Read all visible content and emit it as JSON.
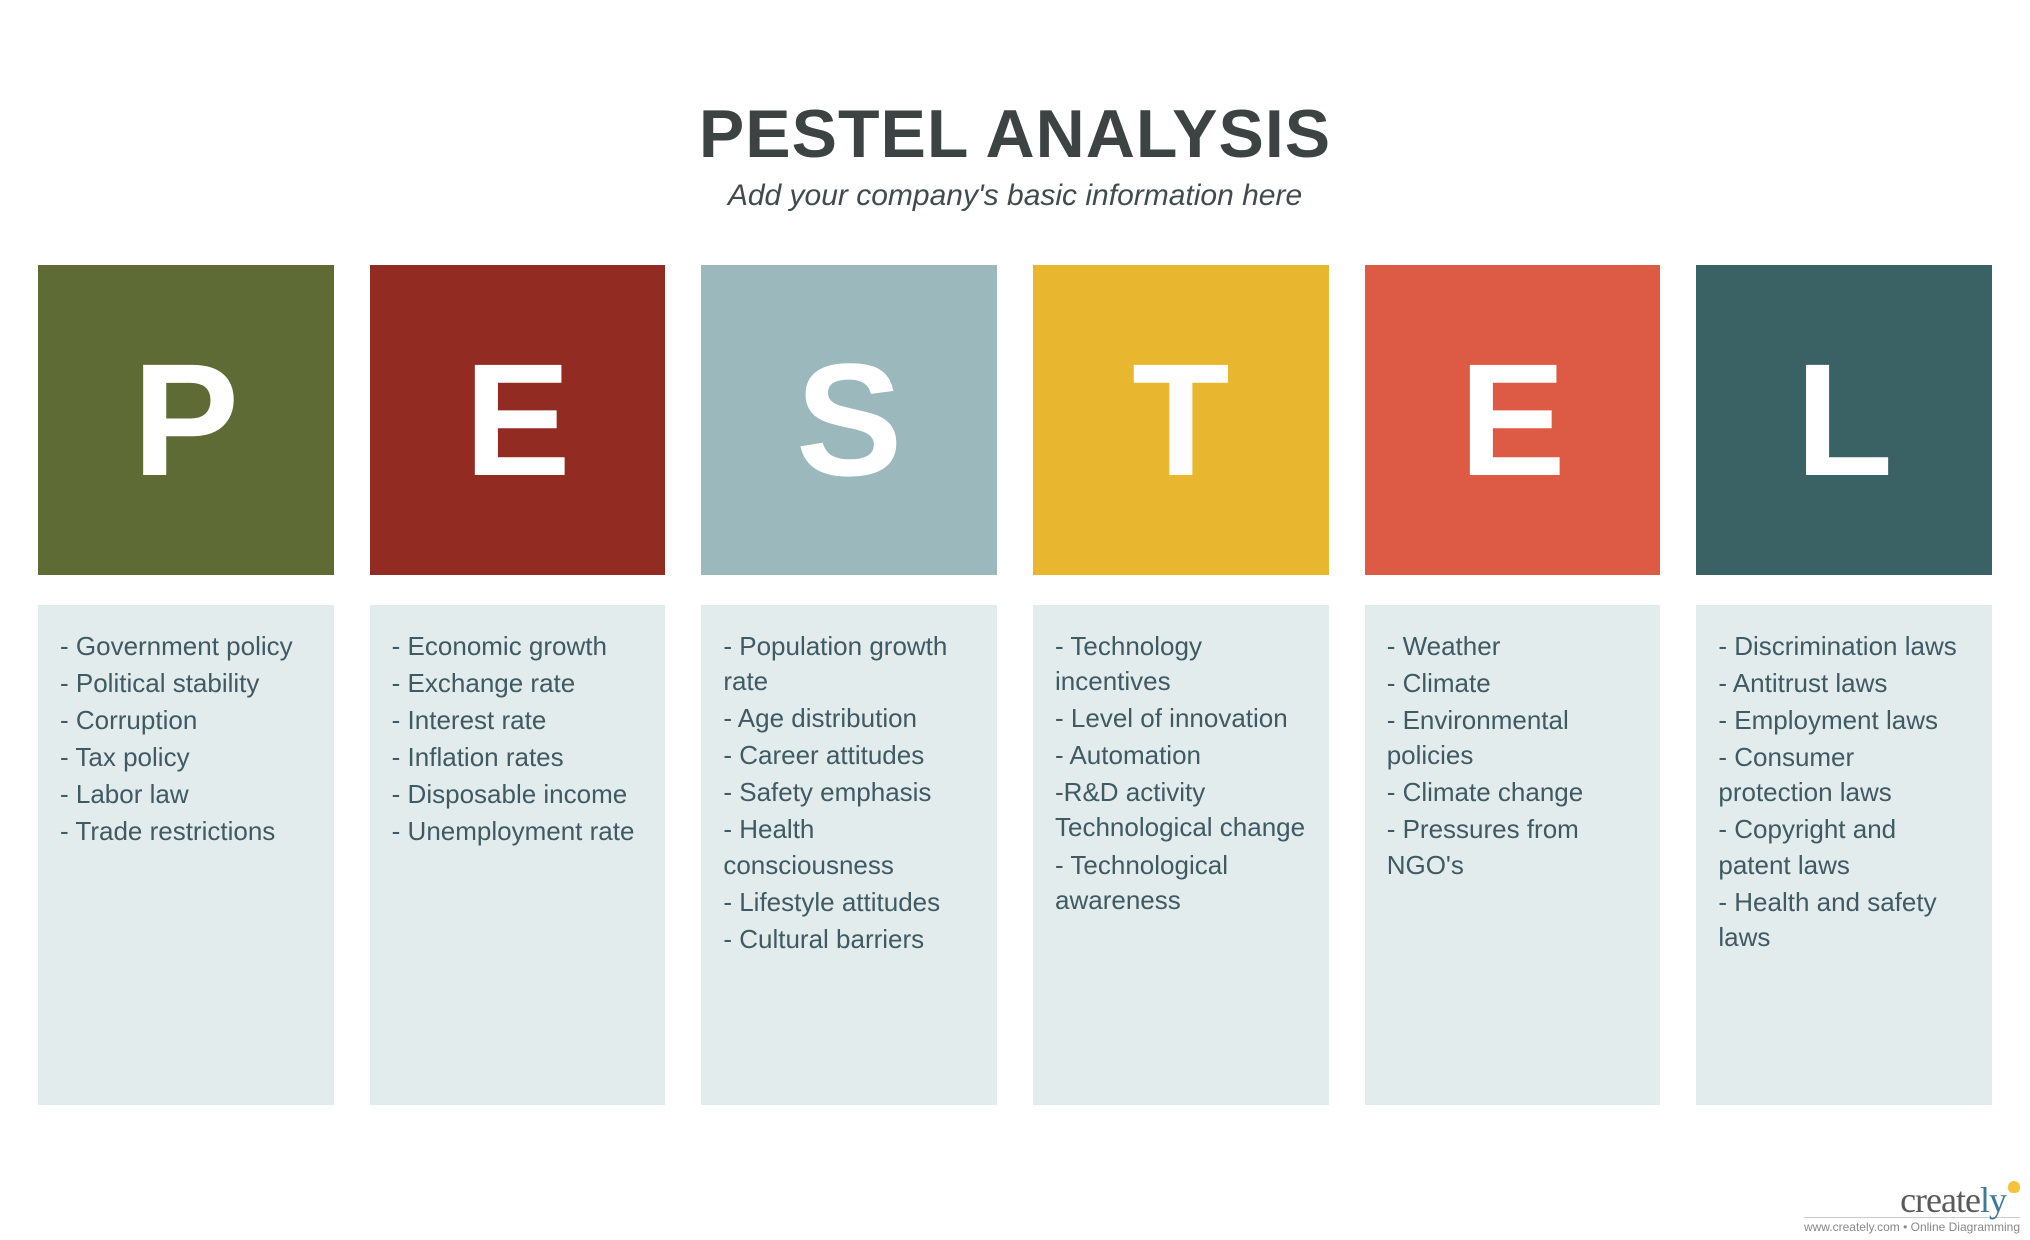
{
  "header": {
    "title": "PESTEL ANALYSIS",
    "subtitle": "Add your company's basic information here",
    "title_color": "#3d4242",
    "subtitle_color": "#414a4c"
  },
  "layout": {
    "type": "infographic",
    "background_color": "#ffffff",
    "column_gap": 36,
    "letter_box_height": 310,
    "items_box_height": 500,
    "items_box_background": "#e3ecec",
    "items_text_color": "#3f5a62",
    "letter_color": "#ffffff",
    "letter_fontsize": 160,
    "item_fontsize": 26
  },
  "columns": [
    {
      "letter": "P",
      "box_color": "#5f6b35",
      "items": [
        "- Government policy",
        "- Political stability",
        "- Corruption",
        "- Tax policy",
        "- Labor law",
        "- Trade restrictions"
      ]
    },
    {
      "letter": "E",
      "box_color": "#922c23",
      "items": [
        "- Economic growth",
        "- Exchange rate",
        "- Interest rate",
        "- Inflation rates",
        "- Disposable income",
        "- Unemployment rate"
      ]
    },
    {
      "letter": "S",
      "box_color": "#9bb8bd",
      "items": [
        "- Population growth rate",
        "- Age distribution",
        "- Career attitudes",
        "- Safety emphasis",
        "- Health consciousness",
        "- Lifestyle attitudes",
        "- Cultural barriers"
      ]
    },
    {
      "letter": "T",
      "box_color": "#e9b62f",
      "items": [
        "- Technology incentives",
        "- Level of innovation",
        "- Automation",
        "-R&D activity Technological change",
        "- Technological awareness"
      ]
    },
    {
      "letter": "E",
      "box_color": "#dd5a44",
      "items": [
        "- Weather",
        "- Climate",
        "- Environmental policies",
        "- Climate change",
        "- Pressures from NGO's"
      ]
    },
    {
      "letter": "L",
      "box_color": "#3a6264",
      "items": [
        "- Discrimination laws",
        "- Antitrust laws",
        "- Employment laws",
        "- Consumer protection laws",
        "- Copyright and patent laws",
        "- Health and safety laws"
      ]
    }
  ],
  "watermark": {
    "brand_prefix": "create",
    "brand_suffix": "ly",
    "subline": "www.creately.com • Online Diagramming"
  }
}
